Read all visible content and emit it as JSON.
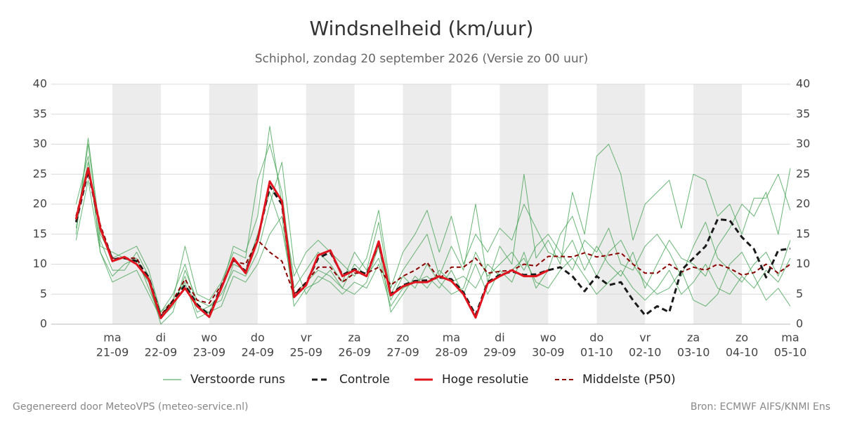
{
  "chart_data": {
    "type": "line",
    "title": "Windsnelheid (km/uur)",
    "subtitle": "Schiphol, zondag 20 september 2026 (Versie zo 00 uur)",
    "footer_left": "Gegenereerd door MeteoVPS (meteo-service.nl)",
    "footer_right": "Bron: ECMWF AIFS/KNMI Ens",
    "categories": [
      null,
      null,
      null,
      [
        "ma",
        "21-09"
      ],
      null,
      null,
      null,
      [
        "di",
        "22-09"
      ],
      null,
      null,
      null,
      [
        "wo",
        "23-09"
      ],
      null,
      null,
      null,
      [
        "do",
        "24-09"
      ],
      null,
      null,
      null,
      [
        "vr",
        "25-09"
      ],
      null,
      null,
      null,
      [
        "za",
        "26-09"
      ],
      null,
      null,
      null,
      [
        "zo",
        "27-09"
      ],
      null,
      null,
      null,
      [
        "ma",
        "28-09"
      ],
      null,
      null,
      null,
      [
        "di",
        "29-09"
      ],
      null,
      null,
      null,
      [
        "wo",
        "30-09"
      ],
      null,
      null,
      null,
      [
        "do",
        "01-10"
      ],
      null,
      null,
      null,
      [
        "vr",
        "02-10"
      ],
      null,
      null,
      null,
      [
        "za",
        "03-10"
      ],
      null,
      null,
      null,
      [
        "zo",
        "04-10"
      ],
      null,
      null,
      null,
      [
        "ma",
        "05-10"
      ]
    ],
    "ylim": [
      0,
      40
    ],
    "yticks": [
      0,
      5,
      10,
      15,
      20,
      25,
      30,
      35,
      40
    ],
    "grid": true,
    "ensemble": {
      "name": "Verstoorde runs",
      "color": "#3a9d4a",
      "members": [
        [
          16,
          30,
          14,
          9,
          9,
          12,
          8,
          2,
          4,
          13,
          5,
          4,
          7,
          12,
          11,
          24,
          30,
          22,
          6,
          9,
          12,
          10,
          7,
          12,
          9,
          17,
          5,
          9,
          12,
          15,
          8,
          13,
          9,
          20,
          7,
          13,
          10,
          25,
          11,
          14,
          10,
          22,
          15,
          28,
          30,
          25,
          14,
          20,
          22,
          24,
          16,
          25,
          24,
          18,
          20,
          15,
          21,
          21,
          25,
          19
        ],
        [
          20,
          28,
          12,
          8,
          10,
          11,
          6,
          1,
          3,
          8,
          2,
          3,
          5,
          9,
          8,
          12,
          20,
          27,
          10,
          5,
          8,
          7,
          5,
          7,
          6,
          10,
          3,
          6,
          7,
          8,
          6,
          9,
          5,
          10,
          5,
          9,
          7,
          12,
          6,
          9,
          15,
          18,
          12,
          8,
          12,
          14,
          10,
          7,
          5,
          6,
          9,
          4,
          3,
          5,
          10,
          12,
          8,
          4,
          6,
          3
        ],
        [
          15,
          31,
          15,
          11,
          12,
          13,
          9,
          2,
          5,
          10,
          3,
          2,
          6,
          13,
          12,
          18,
          33,
          20,
          8,
          12,
          14,
          12,
          10,
          8,
          11,
          19,
          6,
          12,
          15,
          19,
          12,
          18,
          10,
          15,
          12,
          16,
          14,
          20,
          16,
          12,
          11,
          14,
          9,
          13,
          10,
          8,
          12,
          6,
          10,
          14,
          11,
          10,
          8,
          13,
          16,
          20,
          18,
          22,
          15,
          26
        ],
        [
          18,
          27,
          13,
          12,
          11,
          10,
          7,
          0,
          2,
          9,
          4,
          3,
          4,
          10,
          9,
          15,
          22,
          16,
          5,
          7,
          9,
          8,
          6,
          10,
          8,
          11,
          4,
          8,
          6,
          10,
          7,
          5,
          6,
          12,
          8,
          10,
          12,
          9,
          13,
          15,
          12,
          9,
          14,
          12,
          16,
          10,
          9,
          13,
          15,
          12,
          8,
          13,
          17,
          11,
          9,
          7,
          10,
          12,
          8,
          14
        ],
        [
          14,
          24,
          12,
          7,
          8,
          9,
          5,
          1,
          4,
          7,
          1,
          2,
          3,
          8,
          7,
          10,
          15,
          18,
          3,
          6,
          7,
          9,
          6,
          5,
          7,
          13,
          2,
          5,
          8,
          6,
          9,
          7,
          8,
          6,
          10,
          8,
          9,
          11,
          7,
          6,
          9,
          11,
          8,
          5,
          7,
          9,
          6,
          4,
          6,
          9,
          5,
          7,
          10,
          6,
          5,
          8,
          6,
          9,
          7,
          11
        ]
      ]
    },
    "series": [
      {
        "name": "Controle",
        "color": "#1a1a1a",
        "dash": "8,5",
        "values": [
          17,
          25.5,
          16,
          10.8,
          11,
          10.5,
          7.8,
          1.2,
          3.8,
          6.5,
          3.3,
          1.5,
          6.3,
          10.8,
          8.8,
          14.2,
          23,
          20,
          4.8,
          6.8,
          11,
          12,
          8.2,
          9.2,
          8.3,
          13.5,
          5,
          6.5,
          7.2,
          7.3,
          7.8,
          7.5,
          5.3,
          1.5,
          7,
          8.2,
          8.8,
          8.2,
          8.3,
          9,
          9.5,
          8,
          5.5,
          8,
          6.5,
          7,
          4,
          1.5,
          3,
          2,
          9,
          11,
          13,
          17.5,
          17.3,
          14.5,
          12.5,
          7.8,
          12.3,
          12.6
        ]
      },
      {
        "name": "Hoge resolutie",
        "color": "#e0141e",
        "values": [
          17.5,
          26,
          16,
          10.5,
          11.2,
          10,
          7.5,
          1,
          3.5,
          6,
          3,
          1.2,
          6,
          11,
          8.5,
          14,
          23.8,
          20.5,
          4.5,
          6.5,
          11.5,
          12.3,
          8,
          9,
          8,
          13.8,
          4.8,
          6.3,
          7,
          7,
          8,
          7.2,
          5,
          1.1,
          6.8,
          8,
          9,
          8,
          8,
          9,
          null,
          null,
          null,
          null,
          null,
          null,
          null,
          null,
          null,
          null,
          null,
          null,
          null,
          null,
          null,
          null,
          null,
          null,
          null,
          null
        ]
      },
      {
        "name": "Middelste (P50)",
        "color": "#8b0000",
        "dash": "6,4",
        "values": [
          18,
          26,
          16.5,
          11,
          11,
          11,
          7.5,
          1.5,
          4,
          7.5,
          4,
          3.5,
          6.5,
          10.5,
          10,
          14,
          12,
          10.5,
          5,
          7,
          9.5,
          9.5,
          7,
          8.5,
          8.5,
          9.5,
          6.5,
          8,
          9,
          10.3,
          7.5,
          9.5,
          9.5,
          11,
          8.5,
          8.8,
          9,
          10,
          9.7,
          11.3,
          11.3,
          11.2,
          11.9,
          11.2,
          11.5,
          11.9,
          10,
          8.5,
          8.5,
          10,
          8.7,
          9.5,
          9,
          10,
          9.3,
          8.2,
          8.6,
          10,
          8.5,
          10
        ]
      }
    ]
  }
}
